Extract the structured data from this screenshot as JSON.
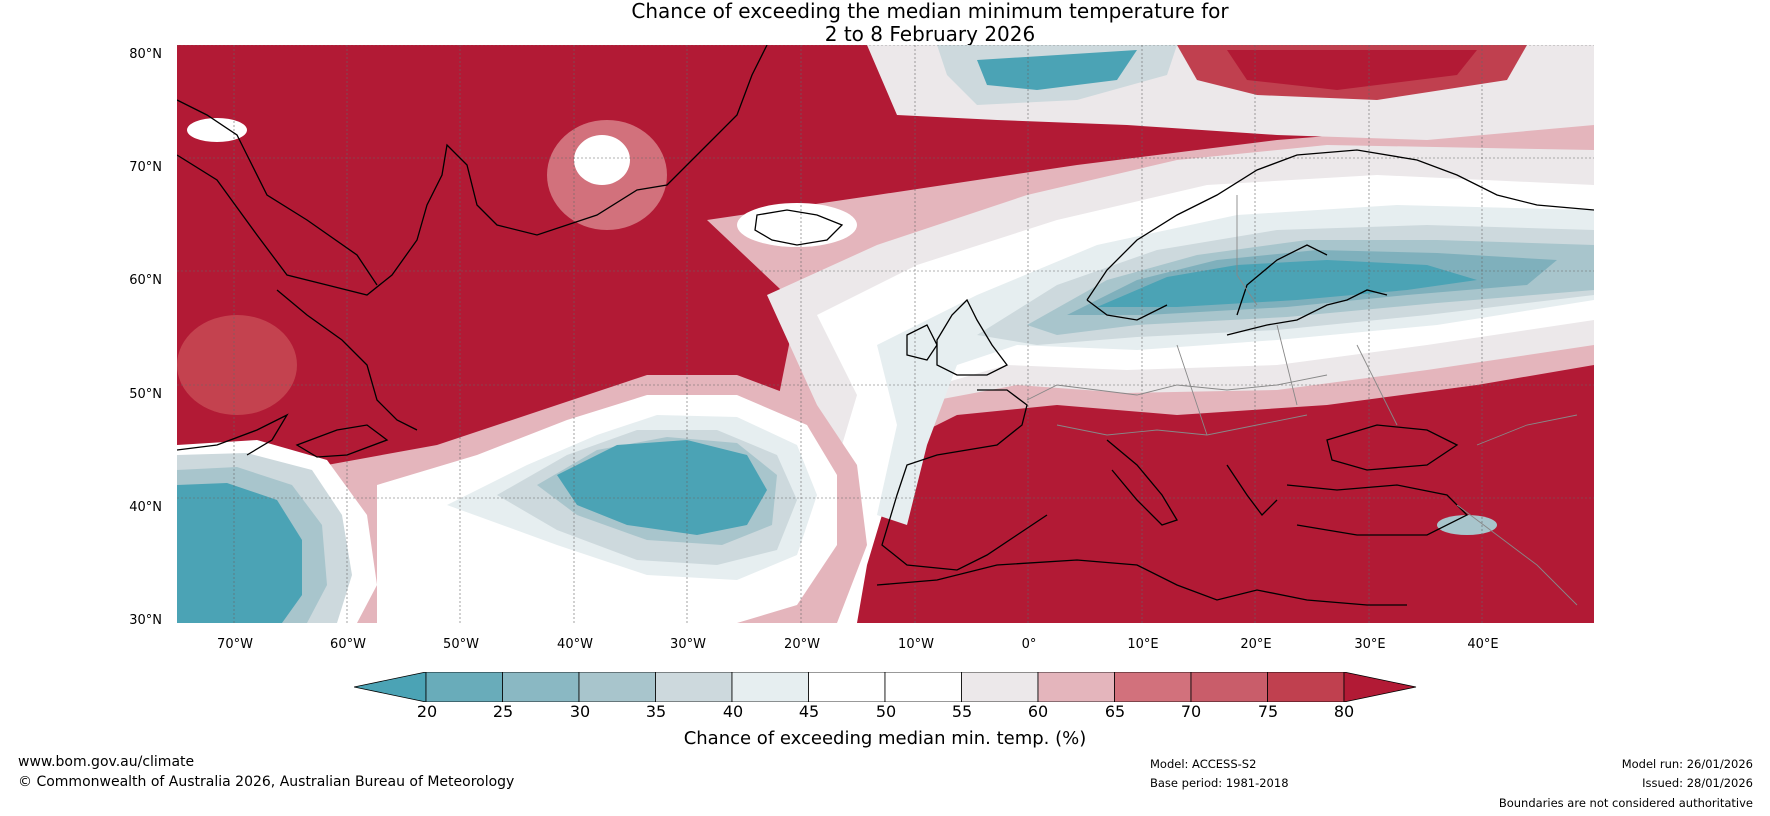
{
  "title": {
    "line1": "Chance of exceeding the median minimum temperature for",
    "line2": "2 to 8 February 2026"
  },
  "map": {
    "lat_labels": [
      "80°N",
      "70°N",
      "60°N",
      "50°N",
      "40°N",
      "30°N"
    ],
    "lon_labels": [
      "70°W",
      "60°W",
      "50°W",
      "40°W",
      "30°W",
      "20°W",
      "10°W",
      "0°",
      "10°E",
      "20°E",
      "30°E",
      "40°E"
    ],
    "extent": {
      "lon_min": -75,
      "lon_max": 50,
      "lat_min": 30,
      "lat_max": 81
    },
    "colors": {
      "dark_red": "#b21a35",
      "red": "#c4424f",
      "mid_red": "#d2717c",
      "pink": "#e4b5bc",
      "light_grey": "#ece8ea",
      "white": "#ffffff",
      "pale_blue": "#e6eef0",
      "grey_blue": "#cdd9dd",
      "light_blue": "#a8c5cc",
      "mid_blue": "#7fb0bc",
      "teal": "#4ba3b5",
      "coast": "#000000",
      "border": "#888888"
    }
  },
  "colorbar": {
    "ticks": [
      "20",
      "25",
      "30",
      "35",
      "40",
      "45",
      "50",
      "55",
      "60",
      "65",
      "70",
      "75",
      "80"
    ],
    "label": "Chance of exceeding median min. temp. (%)",
    "colors": [
      "#4ba3b5",
      "#69acba",
      "#8ab8c3",
      "#a8c5cc",
      "#cdd9dd",
      "#e6eef0",
      "#ffffff",
      "#ffffff",
      "#ece8ea",
      "#e4b5bc",
      "#d2717c",
      "#c95d6a",
      "#c0404f",
      "#b21a35"
    ]
  },
  "footer": {
    "website": "www.bom.gov.au/climate",
    "copyright": "© Commonwealth of Australia 2026, Australian Bureau of Meteorology",
    "model": "Model: ACCESS-S2",
    "base_period": "Base period: 1981-2018",
    "model_run": "Model run: 26/01/2026",
    "issued": "Issued: 28/01/2026",
    "disclaimer": "Boundaries are not considered authoritative"
  }
}
